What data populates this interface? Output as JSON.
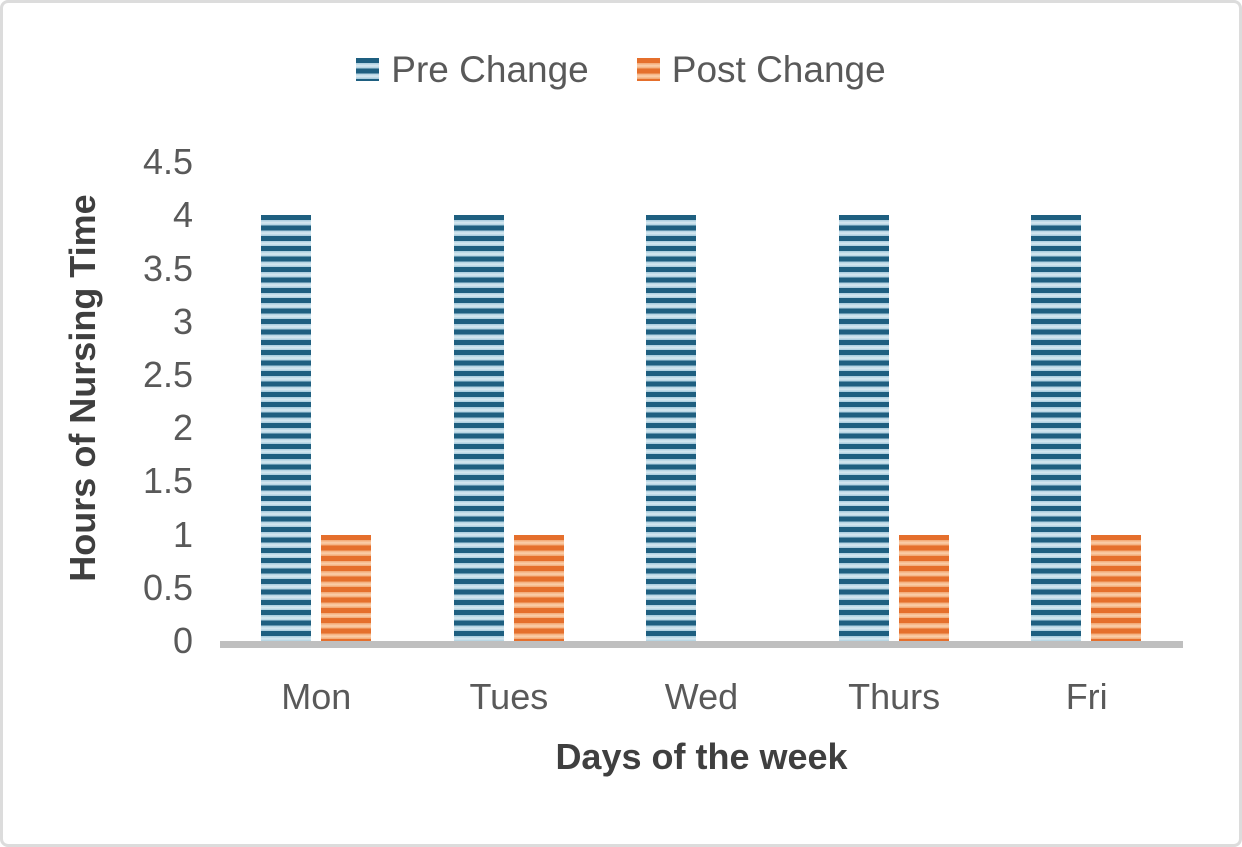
{
  "chart_data": {
    "type": "bar",
    "title": "",
    "categories": [
      "Mon",
      "Tues",
      "Wed",
      "Thurs",
      "Fri"
    ],
    "series": [
      {
        "name": "Pre Change",
        "values": [
          4,
          4,
          4,
          4,
          4
        ],
        "colors": {
          "dark": "#1e5f80",
          "light": "#a6cbdd",
          "highlight": "#d7e9f1"
        }
      },
      {
        "name": "Post Change",
        "values": [
          1,
          1,
          0,
          1,
          1
        ],
        "colors": {
          "dark": "#e56f2c",
          "light": "#f2a671",
          "highlight": "#fbd0ab"
        }
      }
    ],
    "xlabel": "Days of the week",
    "ylabel": "Hours of Nursing Time",
    "ytick_labels": [
      "0",
      "0.5",
      "1",
      "1.5",
      "2",
      "2.5",
      "3",
      "3.5",
      "4",
      "4.5"
    ],
    "ylim": [
      0,
      4.5
    ],
    "grid": false,
    "legend_position": "top-center",
    "axis_line_color": "#bfbfbf",
    "tick_label_color": "#595959",
    "axis_title_color": "#3f3f3f"
  }
}
